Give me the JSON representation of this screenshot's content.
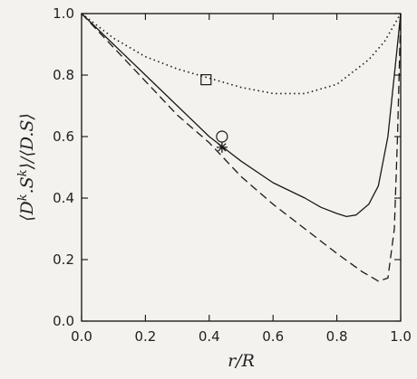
{
  "chart_data": {
    "type": "line",
    "xlabel": "r/R",
    "ylabel": "⟨D^k.S^k⟩/⟨D.S⟩",
    "xlim": [
      0.0,
      1.0
    ],
    "ylim": [
      0.0,
      1.0
    ],
    "xticks": [
      "0.0",
      "0.2",
      "0.4",
      "0.6",
      "0.8",
      "1.0"
    ],
    "yticks": [
      "0.0",
      "0.2",
      "0.4",
      "0.6",
      "0.8",
      "1.0"
    ],
    "grid": false,
    "series": [
      {
        "style": "solid",
        "x": [
          0.0,
          0.1,
          0.2,
          0.3,
          0.4,
          0.5,
          0.6,
          0.7,
          0.75,
          0.8,
          0.83,
          0.86,
          0.9,
          0.93,
          0.96,
          0.98,
          0.99,
          1.0
        ],
        "y": [
          1.0,
          0.9,
          0.8,
          0.7,
          0.6,
          0.52,
          0.45,
          0.4,
          0.37,
          0.35,
          0.34,
          0.345,
          0.38,
          0.44,
          0.6,
          0.8,
          0.9,
          1.0
        ]
      },
      {
        "style": "dashed",
        "x": [
          0.0,
          0.1,
          0.2,
          0.3,
          0.4,
          0.5,
          0.6,
          0.7,
          0.8,
          0.88,
          0.93,
          0.96,
          0.98,
          0.99,
          1.0
        ],
        "y": [
          1.0,
          0.89,
          0.78,
          0.67,
          0.58,
          0.47,
          0.38,
          0.3,
          0.22,
          0.16,
          0.13,
          0.14,
          0.3,
          0.6,
          1.0
        ]
      },
      {
        "style": "dotted",
        "x": [
          0.0,
          0.1,
          0.2,
          0.3,
          0.4,
          0.5,
          0.6,
          0.7,
          0.8,
          0.9,
          0.95,
          1.0
        ],
        "y": [
          1.0,
          0.92,
          0.86,
          0.82,
          0.79,
          0.76,
          0.74,
          0.74,
          0.77,
          0.85,
          0.91,
          1.0
        ]
      }
    ],
    "markers": [
      {
        "shape": "square",
        "x": 0.39,
        "y": 0.785
      },
      {
        "shape": "circle",
        "x": 0.44,
        "y": 0.6
      },
      {
        "shape": "star",
        "x": 0.44,
        "y": 0.565
      }
    ]
  }
}
